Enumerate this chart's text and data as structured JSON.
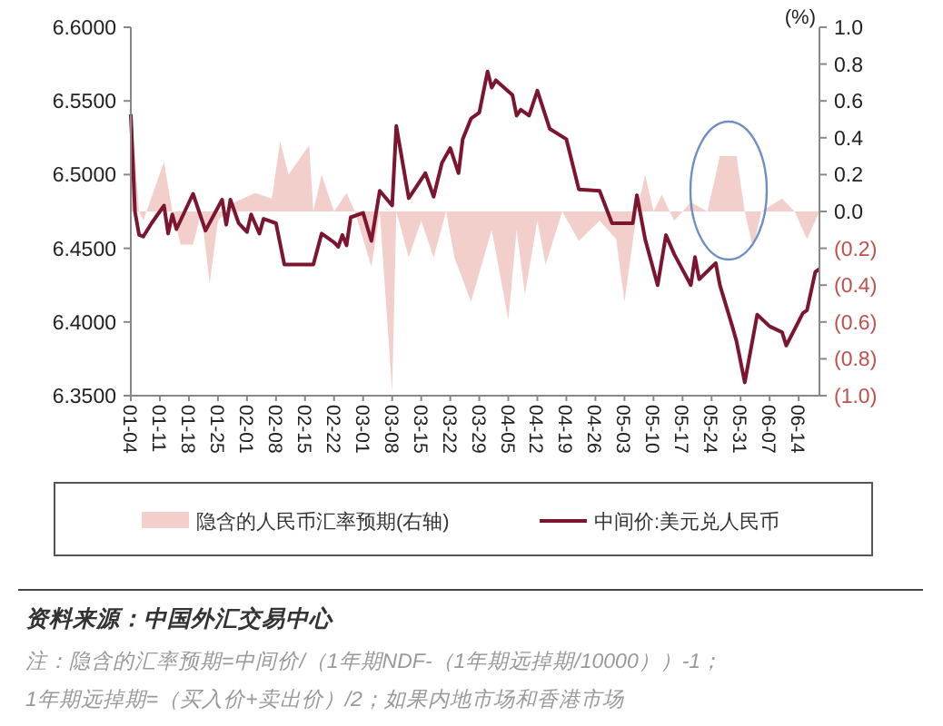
{
  "chart_data": {
    "type": "line",
    "y2label": "(%)",
    "legend": "bottom",
    "grid": false,
    "xlim": [
      "--01-04",
      "--06-19"
    ],
    "xticks": [
      {
        "value": "--01-04",
        "label": "01-04"
      },
      {
        "value": "--01-11",
        "label": "01-11"
      },
      {
        "value": "--01-18",
        "label": "01-18"
      },
      {
        "value": "--01-25",
        "label": "01-25"
      },
      {
        "value": "--02-01",
        "label": "02-01"
      },
      {
        "value": "--02-08",
        "label": "02-08"
      },
      {
        "value": "--02-15",
        "label": "02-15"
      },
      {
        "value": "--02-22",
        "label": "02-22"
      },
      {
        "value": "--03-01",
        "label": "03-01"
      },
      {
        "value": "--03-08",
        "label": "03-08"
      },
      {
        "value": "--03-15",
        "label": "03-15"
      },
      {
        "value": "--03-22",
        "label": "03-22"
      },
      {
        "value": "--03-29",
        "label": "03-29"
      },
      {
        "value": "--04-05",
        "label": "04-05"
      },
      {
        "value": "--04-12",
        "label": "04-12"
      },
      {
        "value": "--04-19",
        "label": "04-19"
      },
      {
        "value": "--04-26",
        "label": "04-26"
      },
      {
        "value": "--05-03",
        "label": "05-03"
      },
      {
        "value": "--05-10",
        "label": "05-10"
      },
      {
        "value": "--05-17",
        "label": "05-17"
      },
      {
        "value": "--05-24",
        "label": "05-24"
      },
      {
        "value": "--05-31",
        "label": "05-31"
      },
      {
        "value": "--06-07",
        "label": "06-07"
      },
      {
        "value": "--06-14",
        "label": "06-14"
      }
    ],
    "ylim": [
      6.35,
      6.6
    ],
    "yticks": [
      {
        "value": 6.35,
        "label": "6.3500"
      },
      {
        "value": 6.4,
        "label": "6.4000"
      },
      {
        "value": 6.45,
        "label": "6.4500"
      },
      {
        "value": 6.5,
        "label": "6.5000"
      },
      {
        "value": 6.55,
        "label": "6.5500"
      },
      {
        "value": 6.6,
        "label": "6.6000"
      }
    ],
    "y2lim": [
      -1,
      1
    ],
    "y2ticks": [
      {
        "value": -1,
        "label": "(1.0)"
      },
      {
        "value": -0.8,
        "label": "(0.8)"
      },
      {
        "value": -0.6,
        "label": "(0.6)"
      },
      {
        "value": -0.4,
        "label": "(0.4)"
      },
      {
        "value": -0.2,
        "label": "(0.2)"
      },
      {
        "value": 0,
        "label": "0.0"
      },
      {
        "value": 0.2,
        "label": "0.2"
      },
      {
        "value": 0.4,
        "label": "0.4"
      },
      {
        "value": 0.6,
        "label": "0.6"
      },
      {
        "value": 0.8,
        "label": "0.8"
      },
      {
        "value": 1,
        "label": "1.0"
      }
    ],
    "series": [
      {
        "name": "隐含的人民币汇率预期(右轴)",
        "type": "area",
        "axis": "y2",
        "color": "#f2cfcb",
        "x": [
          "--01-04",
          "--01-06",
          "--01-07",
          "--01-12",
          "--01-14",
          "--01-16",
          "--01-19",
          "--01-21",
          "--01-23",
          "--01-25",
          "--01-29",
          "--02-03",
          "--02-07",
          "--02-09",
          "--02-11",
          "--02-16",
          "--02-17",
          "--02-19",
          "--02-22",
          "--02-25",
          "--02-27",
          "--03-03",
          "--03-05",
          "--03-08",
          "--03-09",
          "--03-12",
          "--03-15",
          "--03-18",
          "--03-21",
          "--03-23",
          "--03-27",
          "--04-01",
          "--04-05",
          "--04-07",
          "--04-09",
          "--04-12",
          "--04-14",
          "--04-18",
          "--04-22",
          "--04-27",
          "--05-01",
          "--05-03",
          "--05-06",
          "--05-08",
          "--05-10",
          "--05-12",
          "--05-15",
          "--05-19",
          "--05-23",
          "--05-26",
          "--05-30",
          "--06-01",
          "--06-03",
          "--06-05",
          "--06-10",
          "--06-13",
          "--06-16",
          "--06-19"
        ],
        "values": [
          0.6,
          0.0,
          -0.05,
          0.27,
          0.0,
          -0.18,
          -0.18,
          0.0,
          -0.39,
          -0.05,
          0.05,
          0.1,
          0.07,
          0.38,
          0.2,
          0.36,
          0.0,
          0.2,
          0.0,
          0.1,
          0.0,
          -0.3,
          0.0,
          -0.98,
          0.0,
          -0.25,
          -0.05,
          -0.25,
          0.0,
          -0.25,
          -0.49,
          -0.1,
          -0.59,
          -0.1,
          -0.45,
          -0.05,
          -0.29,
          0.0,
          -0.16,
          -0.05,
          -0.15,
          -0.49,
          0.0,
          0.2,
          0.0,
          0.09,
          -0.05,
          0.05,
          0.0,
          0.3,
          0.3,
          0.0,
          -0.2,
          0.0,
          0.07,
          0.0,
          -0.15,
          0.0
        ]
      },
      {
        "name": "中间价:美元兑人民币",
        "color": "#7b1530",
        "x": [
          "--01-04",
          "--01-05",
          "--01-06",
          "--01-07",
          "--01-09",
          "--01-12",
          "--01-13",
          "--01-14",
          "--01-15",
          "--01-19",
          "--01-22",
          "--01-26",
          "--01-27",
          "--01-28",
          "--01-30",
          "--02-01",
          "--02-02",
          "--02-04",
          "--02-05",
          "--02-08",
          "--02-10",
          "--02-17",
          "--02-19",
          "--02-22",
          "--02-23",
          "--02-24",
          "--02-25",
          "--02-26",
          "--03-01",
          "--03-03",
          "--03-05",
          "--03-08",
          "--03-09",
          "--03-12",
          "--03-16",
          "--03-18",
          "--03-20",
          "--03-22",
          "--03-24",
          "--03-25",
          "--03-27",
          "--03-29",
          "--03-31",
          "--04-01",
          "--04-02",
          "--04-06",
          "--04-07",
          "--04-08",
          "--04-10",
          "--04-12",
          "--04-15",
          "--04-19",
          "--04-22",
          "--04-27",
          "--04-30",
          "--05-05",
          "--05-06",
          "--05-08",
          "--05-11",
          "--05-13",
          "--05-15",
          "--05-19",
          "--05-20",
          "--05-21",
          "--05-25",
          "--05-26",
          "--05-29",
          "--05-30",
          "--06-01",
          "--06-04",
          "--06-07",
          "--06-10",
          "--06-11",
          "--06-15",
          "--06-16",
          "--06-18",
          "--06-19"
        ],
        "values": [
          6.541,
          6.475,
          6.459,
          6.458,
          6.467,
          6.479,
          6.46,
          6.473,
          6.463,
          6.487,
          6.462,
          6.483,
          6.466,
          6.483,
          6.467,
          6.461,
          6.473,
          6.46,
          6.47,
          6.467,
          6.439,
          6.439,
          6.46,
          6.454,
          6.451,
          6.459,
          6.452,
          6.471,
          6.474,
          6.455,
          6.489,
          6.479,
          6.533,
          6.484,
          6.501,
          6.485,
          6.508,
          6.518,
          6.501,
          6.524,
          6.538,
          6.542,
          6.57,
          6.559,
          6.564,
          6.554,
          6.54,
          6.544,
          6.54,
          6.557,
          6.531,
          6.524,
          6.49,
          6.489,
          6.467,
          6.467,
          6.486,
          6.456,
          6.425,
          6.459,
          6.446,
          6.425,
          6.444,
          6.429,
          6.44,
          6.425,
          6.397,
          6.387,
          6.359,
          6.405,
          6.397,
          6.393,
          6.384,
          6.406,
          6.408,
          6.434,
          6.436
        ]
      }
    ],
    "annotations": [
      "资料来源：中国外汇交易中心",
      "注：隐含的汇率预期=中间价/（1年期NDF-（1年期远掉期/10000））-1；1年期远掉期=（买入价+卖出价）/2；如果内地市场和香港市场"
    ]
  }
}
